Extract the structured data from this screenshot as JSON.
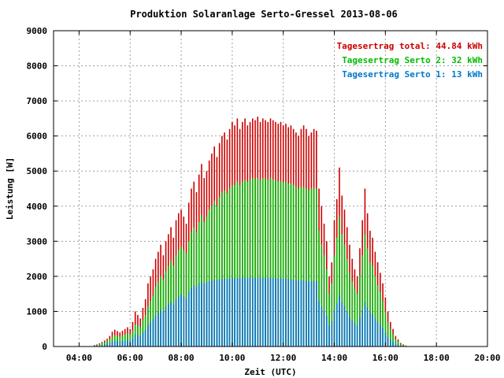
{
  "chart_data": {
    "type": "bar",
    "title": "Produktion Solaranlage Serto-Gressel 2013-08-06",
    "xlabel": "Zeit (UTC)",
    "ylabel": "Leistung [W]",
    "xlim": [
      3.0,
      20.0
    ],
    "ylim": [
      0,
      9000
    ],
    "x_ticks": [
      4,
      6,
      8,
      10,
      12,
      14,
      16,
      18,
      20
    ],
    "x_tick_labels": [
      "04:00",
      "06:00",
      "08:00",
      "10:00",
      "12:00",
      "14:00",
      "16:00",
      "18:00",
      "20:00"
    ],
    "y_ticks": [
      0,
      1000,
      2000,
      3000,
      4000,
      5000,
      6000,
      7000,
      8000,
      9000
    ],
    "y_tick_labels": [
      "0",
      "1000",
      "2000",
      "3000",
      "4000",
      "5000",
      "6000",
      "7000",
      "8000",
      "9000"
    ],
    "grid": true,
    "legend_position": "top-right",
    "legend": [
      {
        "text": "Tagesertrag total: 44.84 kWh",
        "color": "#cc0000"
      },
      {
        "text": "Tagesertrag Serto 2: 32 kWh",
        "color": "#00bb00"
      },
      {
        "text": "Tagesertrag Serto 1: 13 kWh",
        "color": "#0077cc"
      }
    ],
    "colors": {
      "total": "#cc0000",
      "serto2": "#00bb00",
      "serto1": "#0077cc",
      "grid": "#a0a0a0"
    },
    "interval_hours": 0.0833,
    "x": [
      4.6,
      4.7,
      4.8,
      4.9,
      5.0,
      5.1,
      5.2,
      5.3,
      5.4,
      5.5,
      5.6,
      5.7,
      5.8,
      5.9,
      6.0,
      6.1,
      6.2,
      6.3,
      6.4,
      6.5,
      6.6,
      6.7,
      6.8,
      6.9,
      7.0,
      7.1,
      7.2,
      7.3,
      7.4,
      7.5,
      7.6,
      7.7,
      7.8,
      7.9,
      8.0,
      8.1,
      8.2,
      8.3,
      8.4,
      8.5,
      8.6,
      8.7,
      8.8,
      8.9,
      9.0,
      9.1,
      9.2,
      9.3,
      9.4,
      9.5,
      9.6,
      9.7,
      9.8,
      9.9,
      10.0,
      10.1,
      10.2,
      10.3,
      10.4,
      10.5,
      10.6,
      10.7,
      10.8,
      10.9,
      11.0,
      11.1,
      11.2,
      11.3,
      11.4,
      11.5,
      11.6,
      11.7,
      11.8,
      11.9,
      12.0,
      12.1,
      12.2,
      12.3,
      12.4,
      12.5,
      12.6,
      12.7,
      12.8,
      12.9,
      13.0,
      13.1,
      13.2,
      13.3,
      13.4,
      13.5,
      13.6,
      13.7,
      13.8,
      13.9,
      14.0,
      14.1,
      14.2,
      14.3,
      14.4,
      14.5,
      14.6,
      14.7,
      14.8,
      14.9,
      15.0,
      15.1,
      15.2,
      15.3,
      15.4,
      15.5,
      15.6,
      15.7,
      15.8,
      15.9,
      16.0,
      16.1,
      16.2,
      16.3,
      16.4,
      16.5,
      16.6,
      16.7,
      16.8
    ],
    "series": [
      {
        "name": "total",
        "values": [
          40,
          60,
          90,
          130,
          170,
          220,
          300,
          420,
          480,
          440,
          400,
          450,
          500,
          550,
          500,
          700,
          1000,
          900,
          800,
          1100,
          1350,
          1800,
          2000,
          2200,
          2500,
          2700,
          2900,
          2600,
          3000,
          3200,
          3400,
          3100,
          3600,
          3800,
          3900,
          3700,
          3500,
          4100,
          4500,
          4700,
          4400,
          4900,
          5200,
          4800,
          5000,
          5300,
          5500,
          5700,
          5400,
          5800,
          6000,
          6100,
          5900,
          6200,
          6400,
          6300,
          6500,
          6200,
          6400,
          6500,
          6300,
          6400,
          6500,
          6450,
          6550,
          6400,
          6500,
          6450,
          6400,
          6500,
          6450,
          6400,
          6350,
          6400,
          6300,
          6350,
          6250,
          6300,
          6200,
          6100,
          6000,
          6200,
          6300,
          6200,
          6000,
          6100,
          6200,
          6150,
          4500,
          4000,
          3500,
          3000,
          2000,
          2400,
          3600,
          4200,
          5100,
          4300,
          3900,
          3400,
          2900,
          2500,
          2200,
          2000,
          2800,
          3600,
          4500,
          3800,
          3300,
          3100,
          2700,
          2400,
          2100,
          1800,
          1400,
          1000,
          700,
          500,
          300,
          200,
          100,
          60,
          30
        ]
      },
      {
        "name": "Serto 2",
        "values": [
          30,
          40,
          60,
          90,
          120,
          160,
          200,
          280,
          320,
          300,
          280,
          310,
          340,
          370,
          350,
          450,
          620,
          600,
          560,
          750,
          900,
          1150,
          1300,
          1450,
          1700,
          1850,
          2000,
          1900,
          2150,
          2300,
          2450,
          2300,
          2600,
          2750,
          2850,
          2750,
          2650,
          3000,
          3250,
          3400,
          3250,
          3550,
          3750,
          3550,
          3700,
          3900,
          4000,
          4150,
          4000,
          4250,
          4400,
          4450,
          4350,
          4500,
          4600,
          4600,
          4700,
          4600,
          4700,
          4750,
          4700,
          4750,
          4800,
          4780,
          4800,
          4750,
          4800,
          4780,
          4750,
          4800,
          4760,
          4740,
          4700,
          4720,
          4680,
          4700,
          4650,
          4650,
          4600,
          4550,
          4500,
          4550,
          4550,
          4500,
          4450,
          4500,
          4520,
          4500,
          3300,
          2900,
          2600,
          2200,
          1500,
          1800,
          2600,
          3100,
          3700,
          3200,
          2900,
          2500,
          2100,
          1850,
          1650,
          1500,
          2050,
          2600,
          3200,
          2800,
          2400,
          2300,
          2000,
          1750,
          1550,
          1300,
          1000,
          700,
          500,
          350,
          210,
          140,
          70,
          40,
          20
        ]
      },
      {
        "name": "Serto 1",
        "values": [
          15,
          20,
          30,
          45,
          60,
          80,
          100,
          140,
          160,
          150,
          140,
          155,
          170,
          185,
          175,
          225,
          350,
          330,
          300,
          400,
          480,
          620,
          700,
          780,
          880,
          960,
          1040,
          990,
          1120,
          1200,
          1280,
          1200,
          1350,
          1430,
          1480,
          1430,
          1380,
          1560,
          1680,
          1740,
          1690,
          1800,
          1850,
          1800,
          1830,
          1860,
          1880,
          1900,
          1880,
          1910,
          1920,
          1930,
          1920,
          1940,
          1950,
          1950,
          1960,
          1950,
          1960,
          1960,
          1950,
          1960,
          1960,
          1960,
          1960,
          1950,
          1960,
          1955,
          1950,
          1960,
          1955,
          1950,
          1940,
          1945,
          1930,
          1940,
          1920,
          1920,
          1900,
          1890,
          1880,
          1890,
          1890,
          1870,
          1850,
          1860,
          1870,
          1860,
          1300,
          1150,
          1030,
          870,
          600,
          720,
          1040,
          1230,
          1460,
          1270,
          1150,
          1000,
          840,
          740,
          660,
          600,
          820,
          1040,
          1270,
          1120,
          960,
          920,
          800,
          700,
          620,
          520,
          400,
          280,
          200,
          140,
          85,
          55,
          28,
          16,
          8
        ]
      }
    ]
  }
}
